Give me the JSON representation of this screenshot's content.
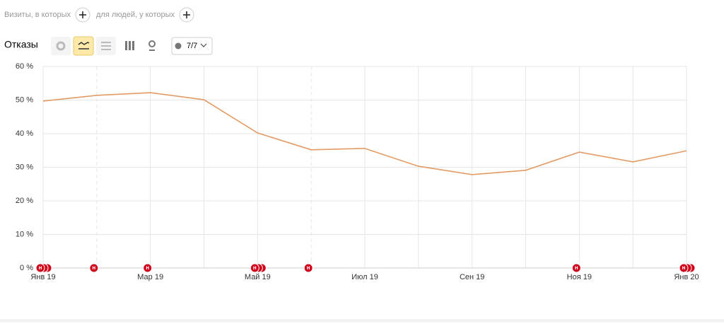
{
  "filters": {
    "visits_label": "Визиты, в которых",
    "people_label": "для людей, у которых"
  },
  "toolbar": {
    "metric": "Отказы",
    "annotations_toggle": "7/7"
  },
  "chart_data": {
    "type": "line",
    "categories": [
      "Янв 19",
      null,
      "Мар 19",
      null,
      "Май 19",
      null,
      "Июл 19",
      null,
      "Сен 19",
      null,
      "Ноя 19",
      null,
      "Янв 20"
    ],
    "series": [
      {
        "name": "Отказы",
        "color": "#e39a64",
        "values": [
          49.7,
          51.4,
          52.2,
          50.1,
          40.2,
          35.2,
          35.6,
          30.3,
          27.8,
          29.1,
          34.5,
          31.6,
          34.9
        ]
      }
    ],
    "ylim": [
      0,
      60
    ],
    "yticks": [
      {
        "value": 0,
        "label": "0 %"
      },
      {
        "value": 10,
        "label": "10 %"
      },
      {
        "value": 20,
        "label": "20 %"
      },
      {
        "value": 30,
        "label": "30 %"
      },
      {
        "value": 40,
        "label": "40 %"
      },
      {
        "value": 50,
        "label": "50 %"
      },
      {
        "value": 60,
        "label": "60 %"
      }
    ],
    "grid": true,
    "marker_label": "н"
  }
}
